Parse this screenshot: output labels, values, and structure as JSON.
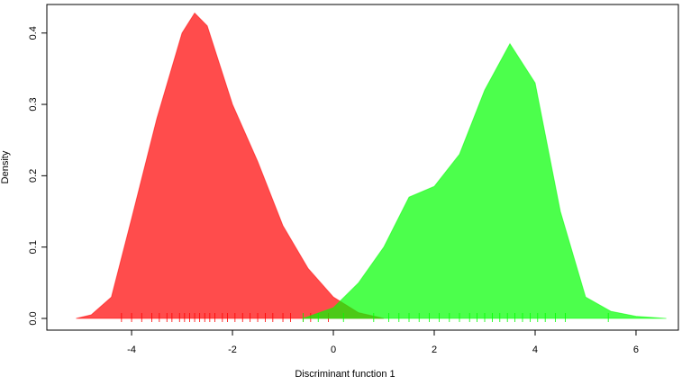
{
  "chart_data": {
    "type": "area",
    "xlabel": "Discriminant function 1",
    "ylabel": "Density",
    "xlim": [
      -5.68,
      6.84
    ],
    "ylim": [
      -0.0164,
      0.44
    ],
    "xticks": [
      -4,
      -2,
      0,
      2,
      4,
      6
    ],
    "yticks": [
      {
        "value": 0,
        "label": "0.0"
      },
      0.1,
      0.2,
      0.3,
      0.4
    ],
    "series": [
      {
        "color": "#ff0000",
        "x": [
          -5.1,
          -4.8,
          -4.4,
          -4,
          -3.5,
          -3,
          -2.75,
          -2.5,
          -2,
          -1.5,
          -1,
          -0.5,
          0,
          0.5,
          1
        ],
        "values": [
          0,
          0.005,
          0.03,
          0.14,
          0.28,
          0.4,
          0.428,
          0.41,
          0.3,
          0.22,
          0.13,
          0.07,
          0.03,
          0.008,
          0
        ],
        "rug": [
          -4.2,
          -4.0,
          -3.8,
          -3.6,
          -3.45,
          -3.3,
          -3.2,
          -3.05,
          -2.95,
          -2.85,
          -2.75,
          -2.65,
          -2.55,
          -2.45,
          -2.35,
          -2.2,
          -2.1,
          -1.95,
          -1.8,
          -1.65,
          -1.5,
          -1.35,
          -1.2,
          -1.0,
          -0.85,
          -0.6,
          -0.45,
          -0.1
        ]
      },
      {
        "color": "#00ff00",
        "x": [
          -0.6,
          0,
          0.5,
          1,
          1.5,
          2,
          2.5,
          3,
          3.5,
          4,
          4.5,
          5,
          5.5,
          6,
          6.6
        ],
        "values": [
          0,
          0.015,
          0.05,
          0.1,
          0.17,
          0.185,
          0.23,
          0.32,
          0.385,
          0.33,
          0.15,
          0.03,
          0.01,
          0.003,
          0
        ],
        "rug": [
          -0.6,
          -0.3,
          0.2,
          0.8,
          1.1,
          1.3,
          1.5,
          1.7,
          1.9,
          2.1,
          2.3,
          2.5,
          2.7,
          2.85,
          3.0,
          3.15,
          3.3,
          3.45,
          3.6,
          3.75,
          3.9,
          4.05,
          4.2,
          4.4,
          4.6,
          5.45
        ]
      }
    ]
  }
}
